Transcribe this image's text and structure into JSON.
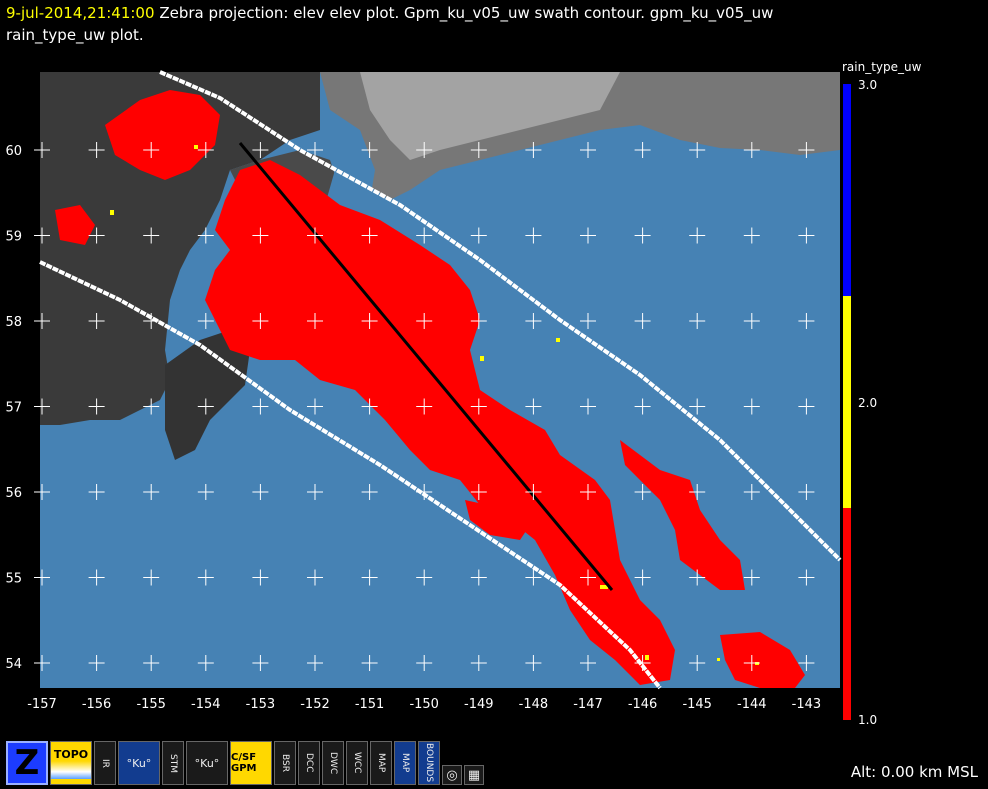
{
  "title": {
    "timestamp": "9-jul-2014,21:41:00",
    "line1": "Zebra projection: elev elev  plot.  Gpm_ku_v05_uw swath contour.  gpm_ku_v05_uw",
    "line2": "rain_type_uw  plot."
  },
  "plot": {
    "lon_ticks": [
      "-157",
      "-156",
      "-155",
      "-154",
      "-153",
      "-152",
      "-151",
      "-150",
      "-149",
      "-148",
      "-147",
      "-146",
      "-145",
      "-144",
      "-143"
    ],
    "lat_ticks": [
      "60",
      "59",
      "58",
      "57",
      "56",
      "55",
      "54"
    ],
    "colors": {
      "ocean": "#4682b4",
      "land_dark": "#3a3a3a",
      "land_mid": "#6a6a6a",
      "land_light": "#a8a8a8",
      "rain": "#ff0000",
      "convective": "#ffff00",
      "swath_edge": "#ffffff",
      "track": "#000000"
    }
  },
  "colorbar": {
    "field": "rain_type_uw",
    "labels": [
      "3.0",
      "2.0",
      "1.0"
    ],
    "colors": [
      "#0000ff",
      "#ffff00",
      "#ff0000"
    ]
  },
  "toolbar": {
    "buttons": [
      {
        "name": "zebra-logo-button",
        "label": "Z"
      },
      {
        "name": "topo-button",
        "label": "TOPO"
      },
      {
        "name": "ir-button",
        "label": "IR"
      },
      {
        "name": "ku-button",
        "label": "°Ku°"
      },
      {
        "name": "stm-button",
        "label": "STM"
      },
      {
        "name": "ku-vs-button",
        "label": "°Ku°"
      },
      {
        "name": "sf-gpm-button",
        "label": "C/SF GPM"
      },
      {
        "name": "bsr-button",
        "label": "BSR"
      },
      {
        "name": "dcc-button",
        "label": "DCC"
      },
      {
        "name": "dwc-button",
        "label": "DWC"
      },
      {
        "name": "wcc-button",
        "label": "WCC"
      },
      {
        "name": "map-us-button",
        "label": "MAP"
      },
      {
        "name": "map-button",
        "label": "MAP"
      },
      {
        "name": "bounds-button",
        "label": "BOUNDS"
      }
    ]
  },
  "status": {
    "altitude": "Alt: 0.00 km MSL"
  }
}
